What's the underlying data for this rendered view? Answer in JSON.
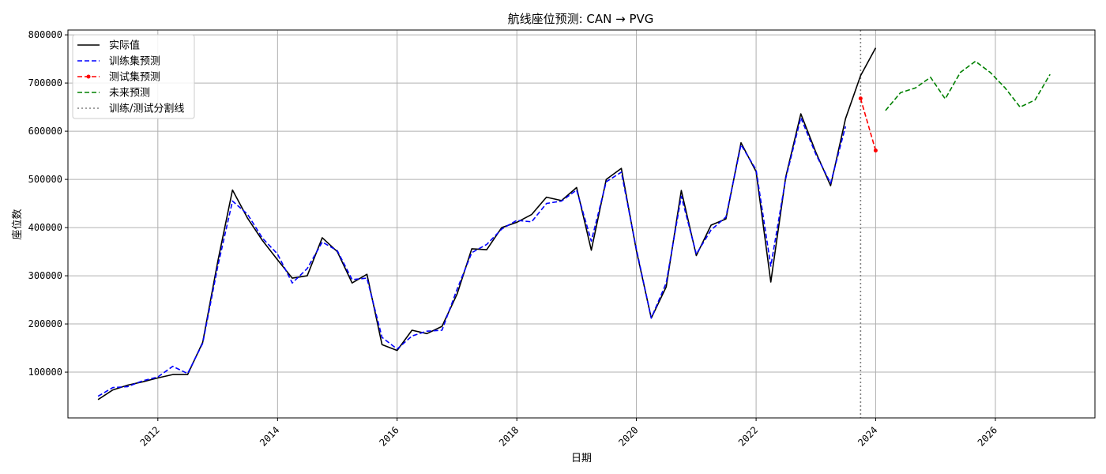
{
  "chart_data": {
    "type": "line",
    "title": "航线座位预测: CAN → PVG",
    "xlabel": "日期",
    "ylabel": "座位数",
    "xlim": [
      "2010-07-01",
      "2027-09-01"
    ],
    "ylim": [
      5000,
      810000
    ],
    "x_ticks": [
      "2012",
      "2014",
      "2016",
      "2018",
      "2020",
      "2022",
      "2024",
      "2026"
    ],
    "y_ticks": [
      100000,
      200000,
      300000,
      400000,
      500000,
      600000,
      700000,
      800000
    ],
    "grid": true,
    "legend_position": "top-left",
    "split_date": "2023-10-01",
    "colors": {
      "actual": "#000000",
      "train": "#0000ff",
      "test": "#ff0000",
      "future": "#008000",
      "split": "#808080",
      "grid": "#b0b0b0"
    },
    "series": [
      {
        "name": "实际值",
        "style": "solid",
        "points": [
          [
            "2011-01-01",
            43000
          ],
          [
            "2011-04-01",
            63000
          ],
          [
            "2011-07-01",
            73000
          ],
          [
            "2011-10-01",
            80000
          ],
          [
            "2012-01-01",
            88000
          ],
          [
            "2012-04-01",
            95000
          ],
          [
            "2012-07-01",
            95000
          ],
          [
            "2012-10-01",
            162000
          ],
          [
            "2013-01-01",
            330000
          ],
          [
            "2013-04-01",
            478000
          ],
          [
            "2013-07-01",
            420000
          ],
          [
            "2013-10-01",
            373000
          ],
          [
            "2014-01-01",
            333000
          ],
          [
            "2014-04-01",
            295000
          ],
          [
            "2014-07-01",
            300000
          ],
          [
            "2014-10-01",
            379000
          ],
          [
            "2015-01-01",
            350000
          ],
          [
            "2015-04-01",
            285000
          ],
          [
            "2015-07-01",
            303000
          ],
          [
            "2015-10-01",
            157000
          ],
          [
            "2016-01-01",
            145000
          ],
          [
            "2016-04-01",
            187000
          ],
          [
            "2016-07-01",
            180000
          ],
          [
            "2016-10-01",
            195000
          ],
          [
            "2017-01-01",
            262000
          ],
          [
            "2017-04-01",
            356000
          ],
          [
            "2017-07-01",
            354000
          ],
          [
            "2017-10-01",
            400000
          ],
          [
            "2018-01-01",
            411000
          ],
          [
            "2018-04-01",
            427000
          ],
          [
            "2018-07-01",
            463000
          ],
          [
            "2018-10-01",
            456000
          ],
          [
            "2019-01-01",
            483000
          ],
          [
            "2019-04-01",
            353000
          ],
          [
            "2019-07-01",
            500000
          ],
          [
            "2019-10-01",
            523000
          ],
          [
            "2020-01-01",
            352000
          ],
          [
            "2020-04-01",
            212000
          ],
          [
            "2020-07-01",
            277000
          ],
          [
            "2020-10-01",
            477000
          ],
          [
            "2021-01-01",
            342000
          ],
          [
            "2021-04-01",
            405000
          ],
          [
            "2021-07-01",
            418000
          ],
          [
            "2021-10-01",
            576000
          ],
          [
            "2022-01-01",
            516000
          ],
          [
            "2022-04-01",
            287000
          ],
          [
            "2022-07-01",
            505000
          ],
          [
            "2022-10-01",
            636000
          ],
          [
            "2023-01-01",
            556000
          ],
          [
            "2023-04-01",
            487000
          ],
          [
            "2023-07-01",
            626000
          ],
          [
            "2023-10-01",
            715000
          ],
          [
            "2024-01-01",
            773000
          ]
        ]
      },
      {
        "name": "训练集预测",
        "style": "dashed",
        "points": [
          [
            "2011-01-01",
            50000
          ],
          [
            "2011-04-01",
            68000
          ],
          [
            "2011-07-01",
            70000
          ],
          [
            "2011-10-01",
            82000
          ],
          [
            "2012-01-01",
            90000
          ],
          [
            "2012-04-01",
            112000
          ],
          [
            "2012-07-01",
            97000
          ],
          [
            "2012-10-01",
            160000
          ],
          [
            "2013-01-01",
            320000
          ],
          [
            "2013-04-01",
            455000
          ],
          [
            "2013-07-01",
            428000
          ],
          [
            "2013-10-01",
            378000
          ],
          [
            "2014-01-01",
            345000
          ],
          [
            "2014-04-01",
            285000
          ],
          [
            "2014-07-01",
            315000
          ],
          [
            "2014-10-01",
            370000
          ],
          [
            "2015-01-01",
            352000
          ],
          [
            "2015-04-01",
            292000
          ],
          [
            "2015-07-01",
            295000
          ],
          [
            "2015-10-01",
            172000
          ],
          [
            "2016-01-01",
            148000
          ],
          [
            "2016-04-01",
            175000
          ],
          [
            "2016-07-01",
            185000
          ],
          [
            "2016-10-01",
            187000
          ],
          [
            "2017-01-01",
            272000
          ],
          [
            "2017-04-01",
            348000
          ],
          [
            "2017-07-01",
            365000
          ],
          [
            "2017-10-01",
            397000
          ],
          [
            "2018-01-01",
            415000
          ],
          [
            "2018-04-01",
            412000
          ],
          [
            "2018-07-01",
            450000
          ],
          [
            "2018-10-01",
            455000
          ],
          [
            "2019-01-01",
            478000
          ],
          [
            "2019-04-01",
            372000
          ],
          [
            "2019-07-01",
            495000
          ],
          [
            "2019-10-01",
            515000
          ],
          [
            "2020-01-01",
            355000
          ],
          [
            "2020-04-01",
            212000
          ],
          [
            "2020-07-01",
            285000
          ],
          [
            "2020-10-01",
            465000
          ],
          [
            "2021-01-01",
            345000
          ],
          [
            "2021-04-01",
            395000
          ],
          [
            "2021-07-01",
            422000
          ],
          [
            "2021-10-01",
            572000
          ],
          [
            "2022-01-01",
            520000
          ],
          [
            "2022-04-01",
            320000
          ],
          [
            "2022-07-01",
            502000
          ],
          [
            "2022-10-01",
            628000
          ],
          [
            "2023-01-01",
            552000
          ],
          [
            "2023-04-01",
            492000
          ],
          [
            "2023-07-01",
            610000
          ]
        ]
      },
      {
        "name": "测试集预测",
        "style": "dashed-dot-markers",
        "points": [
          [
            "2023-10-01",
            668000
          ],
          [
            "2024-01-01",
            560000
          ]
        ]
      },
      {
        "name": "未来预测",
        "style": "dashed",
        "points": [
          [
            "2024-03-01",
            643000
          ],
          [
            "2024-06-01",
            680000
          ],
          [
            "2024-09-01",
            690000
          ],
          [
            "2024-12-01",
            712000
          ],
          [
            "2025-03-01",
            667000
          ],
          [
            "2025-06-01",
            722000
          ],
          [
            "2025-09-01",
            745000
          ],
          [
            "2025-12-01",
            722000
          ],
          [
            "2026-03-01",
            690000
          ],
          [
            "2026-06-01",
            650000
          ],
          [
            "2026-09-01",
            665000
          ],
          [
            "2026-12-01",
            718000
          ]
        ]
      }
    ],
    "split_line_label": "训练/测试分割线"
  }
}
